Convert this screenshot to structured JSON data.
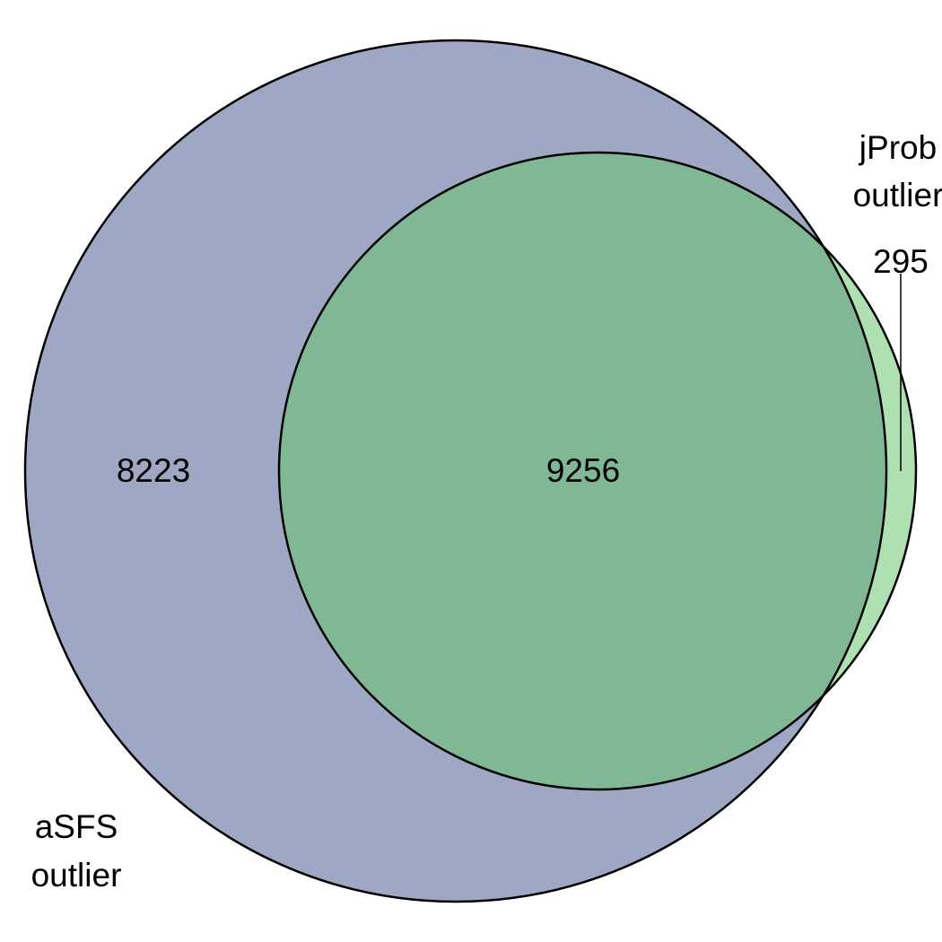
{
  "diagram": {
    "type": "venn",
    "sets": [
      {
        "label_line1": "aSFS",
        "label_line2": "outlier",
        "color": "#9ea8c5"
      },
      {
        "label_line1": "jProb",
        "label_line2": "outlier",
        "color": "#aee0b2"
      }
    ],
    "regions": {
      "only_set_a": "8223",
      "intersection": "9256",
      "only_set_b": "295"
    },
    "intersection_color": "#80b794",
    "outline_color": "#000000"
  }
}
